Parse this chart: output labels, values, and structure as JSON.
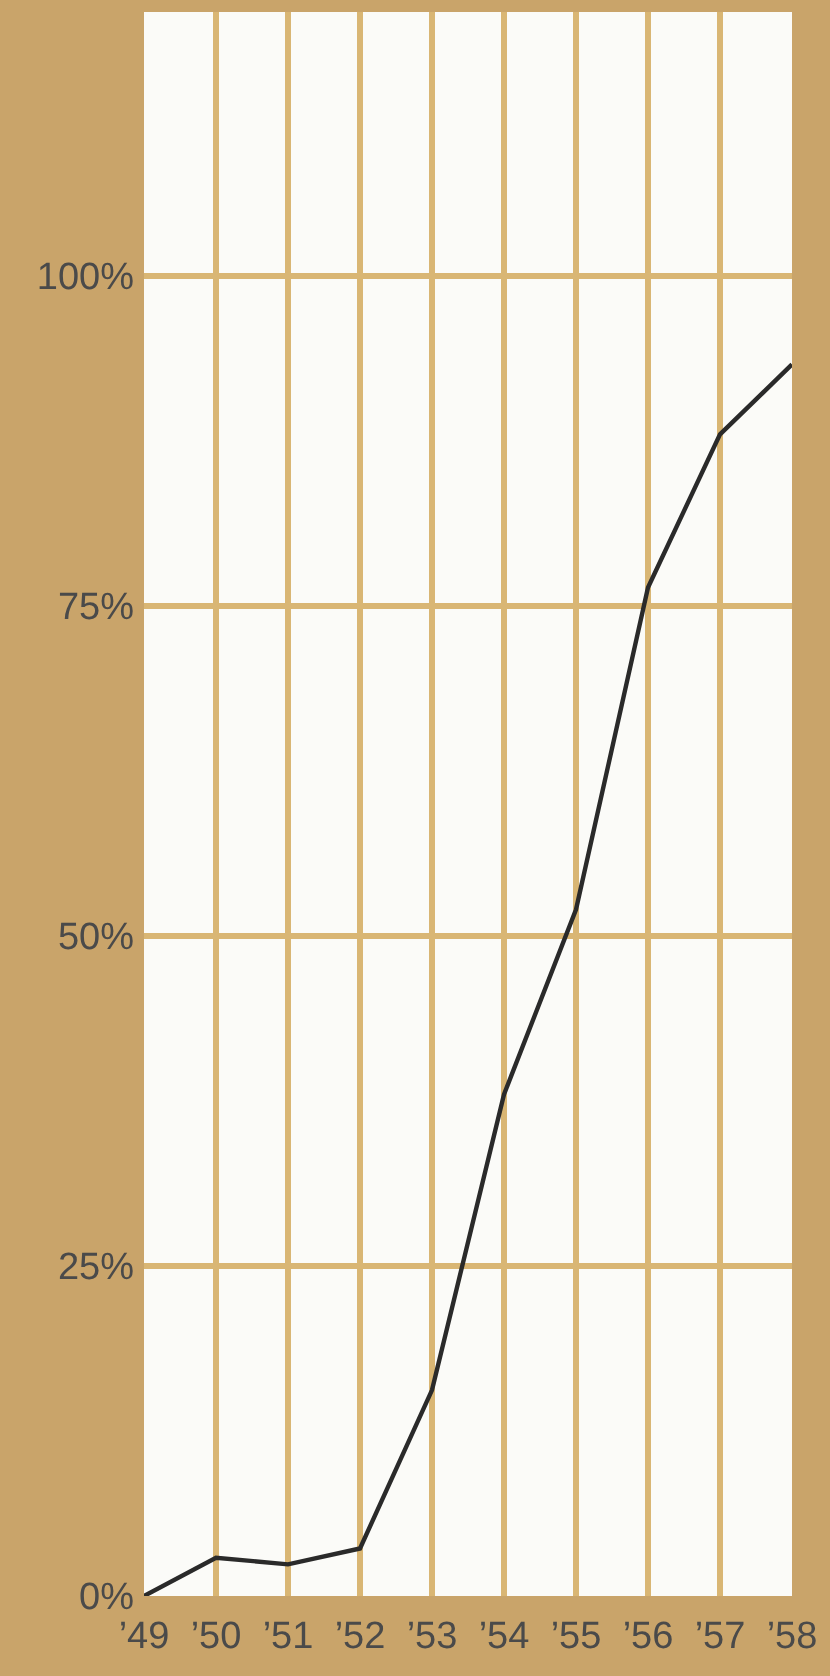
{
  "chart_data": {
    "type": "line",
    "categories": [
      "’49",
      "’50",
      "’51",
      "’52",
      "’53",
      "’54",
      "’55",
      "’56",
      "’57",
      "’58"
    ],
    "series": [
      {
        "color": "#2a2a2a",
        "values": [
          0,
          2.9,
          2.4,
          3.6,
          15.6,
          38,
          52,
          76.4,
          88,
          93.3
        ]
      }
    ],
    "ylim": [
      0,
      120
    ],
    "yticks": [
      {
        "value": 0,
        "label": "0%"
      },
      {
        "value": 25,
        "label": "25%"
      },
      {
        "value": 50,
        "label": "50%"
      },
      {
        "value": 75,
        "label": "75%"
      },
      {
        "value": 100,
        "label": "100%"
      }
    ],
    "grid": true,
    "marker": "none",
    "line_style": "solid"
  }
}
